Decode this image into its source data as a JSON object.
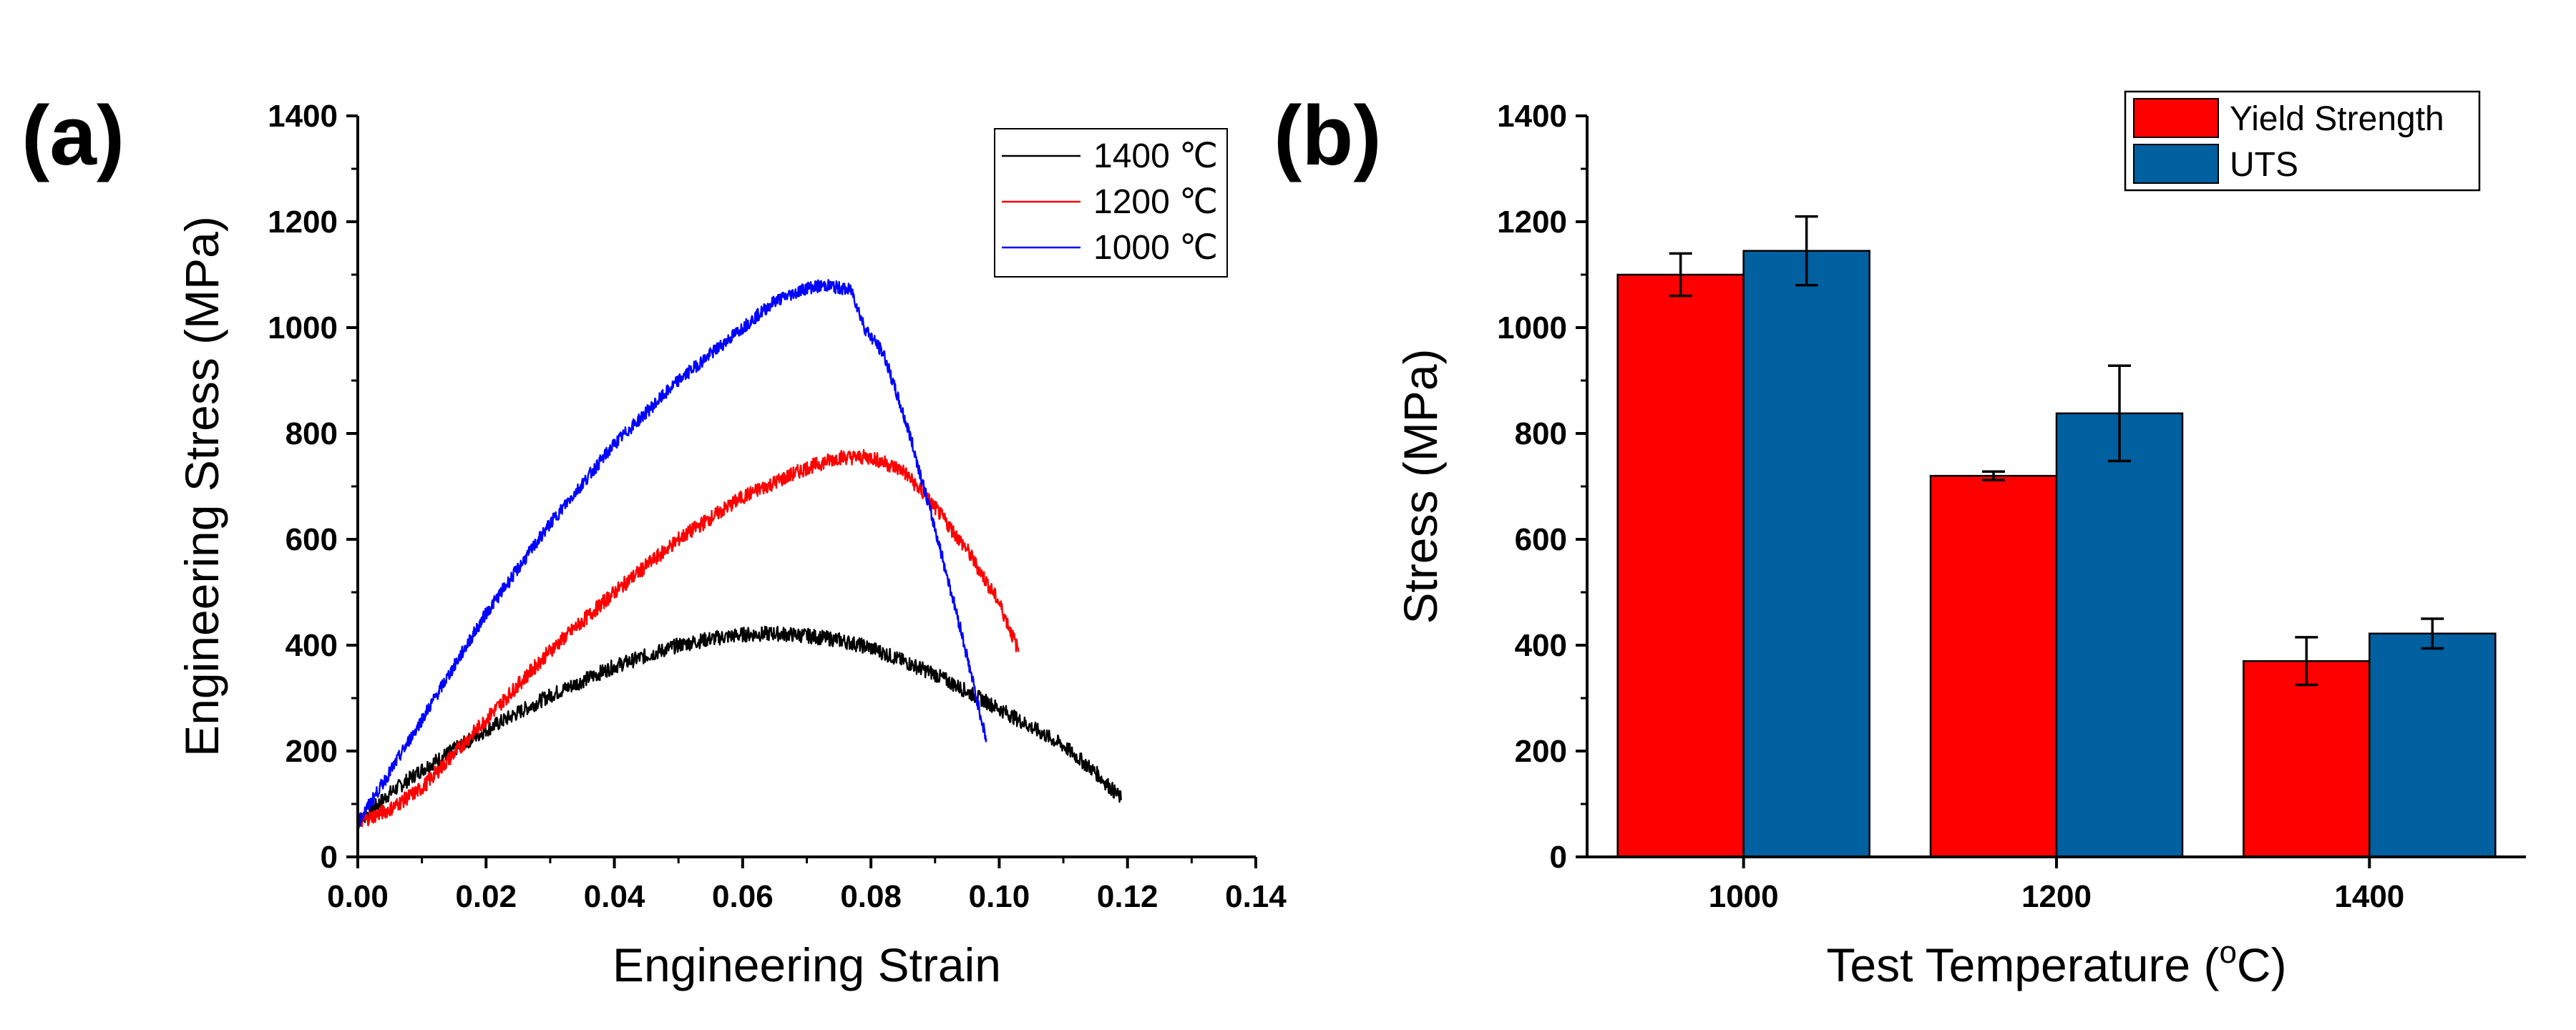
{
  "panels": {
    "a": "(a)",
    "b": "(b)"
  },
  "chart_data": [
    {
      "type": "line",
      "panel": "(a)",
      "xlabel": "Engineering Strain",
      "ylabel": "Engineering Stress (MPa)",
      "xlim": [
        0,
        0.14
      ],
      "ylim": [
        0,
        1400
      ],
      "xticks": [
        "0.00",
        "0.02",
        "0.04",
        "0.06",
        "0.08",
        "0.10",
        "0.12",
        "0.14"
      ],
      "yticks": [
        "0",
        "200",
        "400",
        "600",
        "800",
        "1000",
        "1200",
        "1400"
      ],
      "legend_position": "top-right",
      "series": [
        {
          "name": "1400 ℃",
          "color": "#000000",
          "noise": 14,
          "x": [
            0,
            0.005,
            0.01,
            0.02,
            0.03,
            0.04,
            0.05,
            0.055,
            0.06,
            0.065,
            0.07,
            0.075,
            0.08,
            0.09,
            0.1,
            0.11,
            0.115,
            0.119
          ],
          "y": [
            65,
            120,
            165,
            240,
            305,
            360,
            400,
            412,
            420,
            422,
            418,
            410,
            395,
            345,
            280,
            210,
            160,
            110
          ]
        },
        {
          "name": "1200 ℃",
          "color": "#ff0000",
          "noise": 14,
          "x": [
            0,
            0.005,
            0.01,
            0.015,
            0.02,
            0.03,
            0.04,
            0.05,
            0.06,
            0.07,
            0.075,
            0.08,
            0.085,
            0.09,
            0.095,
            0.1,
            0.103
          ],
          "y": [
            65,
            90,
            130,
            195,
            260,
            390,
            500,
            600,
            680,
            735,
            755,
            755,
            730,
            660,
            580,
            480,
            390
          ]
        },
        {
          "name": "1000 ℃",
          "color": "#0000ff",
          "noise": 12,
          "x": [
            0,
            0.005,
            0.01,
            0.02,
            0.03,
            0.04,
            0.05,
            0.06,
            0.065,
            0.07,
            0.073,
            0.077,
            0.079,
            0.082,
            0.086,
            0.09,
            0.094,
            0.098
          ],
          "y": [
            65,
            160,
            260,
            460,
            630,
            780,
            900,
            1000,
            1050,
            1075,
            1080,
            1070,
            1000,
            950,
            800,
            620,
            430,
            220
          ]
        }
      ]
    },
    {
      "type": "bar",
      "panel": "(b)",
      "xlabel_main": "Test Temperature (",
      "xlabel_sup": "o",
      "xlabel_end": "C)",
      "ylabel": "Stress (MPa)",
      "categories": [
        "1000",
        "1200",
        "1400"
      ],
      "ylim": [
        0,
        1400
      ],
      "yticks": [
        "0",
        "200",
        "400",
        "600",
        "800",
        "1000",
        "1200",
        "1400"
      ],
      "legend_position": "top-right",
      "series": [
        {
          "name": "Yield Strength",
          "color": "#ff0000",
          "values": [
            1100,
            720,
            370
          ],
          "errors": [
            40,
            8,
            45
          ]
        },
        {
          "name": "UTS",
          "color": "#0060a0",
          "values": [
            1145,
            838,
            422
          ],
          "errors": [
            65,
            90,
            28
          ]
        }
      ]
    }
  ]
}
